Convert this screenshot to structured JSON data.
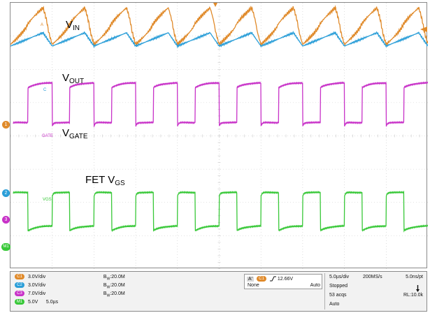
{
  "screen": {
    "annotations": {
      "vin": {
        "main": "V",
        "sub": "IN"
      },
      "vout": {
        "main": "V",
        "sub": "OUT"
      },
      "vgate": {
        "main": "V",
        "sub": "GATE"
      },
      "vgs": {
        "main": "FET V",
        "sub": "GS"
      }
    },
    "trace_tags": {
      "a": "A",
      "c": "C",
      "gate": "GATE",
      "vgs": "VGS"
    },
    "markers": {
      "m1": "1",
      "m2": "2",
      "m3": "3",
      "m4": "M1"
    },
    "colors": {
      "ch_a": "#e08a2a",
      "ch_c": "#2a9ed8",
      "ch_gate": "#c832c8",
      "ch_vgs": "#38c838",
      "grid": "#c8c8c8",
      "trigger": "#e08a2a"
    },
    "traces": [
      {
        "name": "A",
        "color": "#e08a2a",
        "shape": "ripple",
        "period_us": 5.0,
        "level_div": 3.3,
        "amp_div": 0.55
      },
      {
        "name": "C",
        "color": "#2a9ed8",
        "shape": "ripple-small",
        "period_us": 5.0,
        "level_div": 2.9,
        "amp_div": 0.2
      },
      {
        "name": "GATE",
        "color": "#c832c8",
        "shape": "square",
        "period_us": 5.0,
        "level_high_div": 0.4,
        "level_low_div": 1.45
      },
      {
        "name": "VGS",
        "color": "#38c838",
        "shape": "square",
        "period_us": 5.0,
        "level_high_div": -1.7,
        "level_low_div": -2.85
      }
    ]
  },
  "status": {
    "channels": [
      {
        "badge": "C1",
        "color": "#e08a2a",
        "vdiv": "3.0V/div",
        "bw_label": "B",
        "bw_sub": "W",
        "bw_val": ":20.0M"
      },
      {
        "badge": "C2",
        "color": "#2a9ed8",
        "vdiv": "3.0V/div",
        "bw_label": "B",
        "bw_sub": "W",
        "bw_val": ":20.0M"
      },
      {
        "badge": "C3",
        "color": "#c832c8",
        "vdiv": "7.0V/div",
        "bw_label": "B",
        "bw_sub": "W",
        "bw_val": ":20.0M"
      },
      {
        "badge": "M1",
        "color": "#38c838",
        "vdiv": "5.0V",
        "extra": "5.0µs"
      }
    ],
    "trigger": {
      "a_badge": "A'",
      "ch_badge": "C1",
      "slope_icon": "rising-edge-icon",
      "level": "12.66V",
      "coupling": "None",
      "mode": "Auto"
    },
    "acquisition": {
      "timebase": "5.0µs/div",
      "sample_rate": "200MS/s",
      "resolution": "5.0ns/pt",
      "state": "Stopped",
      "acqs": "53 acqs",
      "record_length": "RL:10.0k",
      "run_mode": "Auto"
    }
  }
}
